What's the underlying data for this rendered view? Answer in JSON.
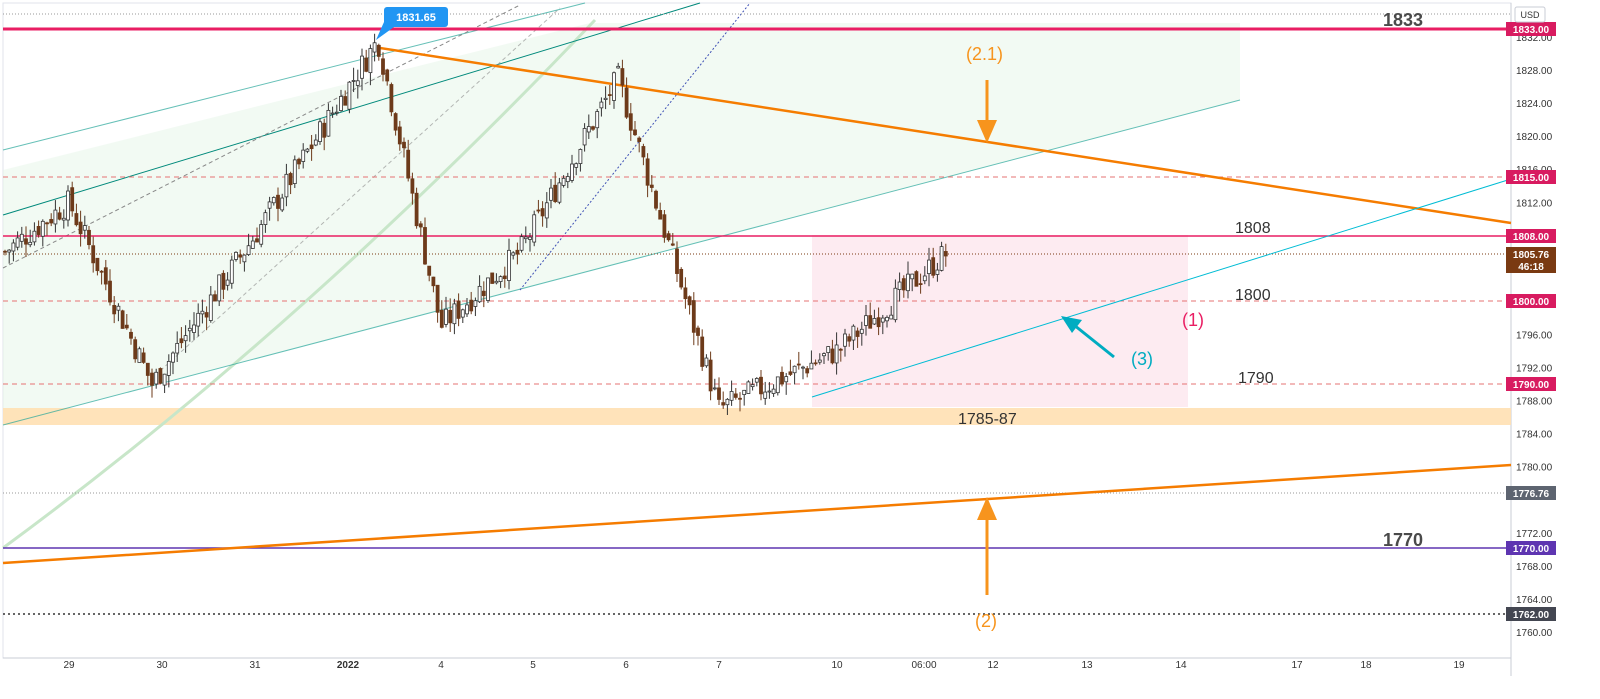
{
  "currency": "USD",
  "x_ticks": [
    "29",
    "30",
    "31",
    "2022",
    "4",
    "5",
    "6",
    "7",
    "10",
    "06:00",
    "12",
    "13",
    "14",
    "17",
    "18",
    "19"
  ],
  "price_tags": [
    {
      "value": "1833.00",
      "color": "#d81b60"
    },
    {
      "value": "1815.00",
      "color": "#d81b60"
    },
    {
      "value": "1808.00",
      "color": "#d81b60"
    },
    {
      "value": "1805.76",
      "sub": "46:18",
      "color": "#7a3a12"
    },
    {
      "value": "1800.00",
      "color": "#d81b60"
    },
    {
      "value": "1790.00",
      "color": "#d81b60"
    },
    {
      "value": "1776.76",
      "color": "#5d6470"
    },
    {
      "value": "1770.00",
      "color": "#5e35b1"
    },
    {
      "value": "1762.00",
      "color": "#434651"
    }
  ],
  "high_label": "1831.65",
  "annotations": {
    "level_1833": "1833",
    "level_1808": "1808",
    "level_1800": "1800",
    "level_1790": "1790",
    "zone_1785": "1785-87",
    "level_1770": "1770",
    "label_2_1": "(2.1)",
    "label_1": "(1)",
    "label_3": "(3)",
    "label_2": "(2)"
  },
  "colors": {
    "resistance": "#e91e63",
    "trend": "#f57c00",
    "channel": "#26a69a",
    "support_zone": "#ffe0b2",
    "pink_zone": "#fce4ec",
    "purple": "#5e35b1",
    "cyan": "#00bcd4",
    "candle_up": "#333333",
    "candle_down": "#6d3a1a"
  },
  "chart_data": {
    "type": "candlestick",
    "symbol_currency": "USD",
    "ylim": [
      1758,
      1838
    ],
    "y_ticks": [
      1760,
      1764,
      1768,
      1772,
      1780,
      1784,
      1788,
      1792,
      1796,
      1812,
      1816,
      1820,
      1824,
      1828,
      1832
    ],
    "x_tick_labels": [
      "29",
      "30",
      "31",
      "2022",
      "4",
      "5",
      "6",
      "7",
      "10",
      "06:00",
      "12",
      "13",
      "14",
      "17",
      "18",
      "19"
    ],
    "key_points": [
      {
        "x": "29",
        "close": 1812
      },
      {
        "x": "30",
        "close": 1790
      },
      {
        "x": "31",
        "close": 1808
      },
      {
        "x": "2022",
        "close": 1831.65
      },
      {
        "x": "4",
        "close": 1797
      },
      {
        "x": "5",
        "close": 1806
      },
      {
        "x": "6",
        "close": 1827
      },
      {
        "x": "7",
        "close": 1787
      },
      {
        "x": "10",
        "close": 1794
      },
      {
        "x": "06:00",
        "close": 1805.76
      }
    ],
    "horizontal_levels": [
      1833,
      1815,
      1808,
      1800,
      1790,
      1776.76,
      1770,
      1762
    ],
    "support_zone": [
      1785,
      1787
    ],
    "last_price": 1805.76,
    "countdown": "46:18",
    "grid": false
  }
}
